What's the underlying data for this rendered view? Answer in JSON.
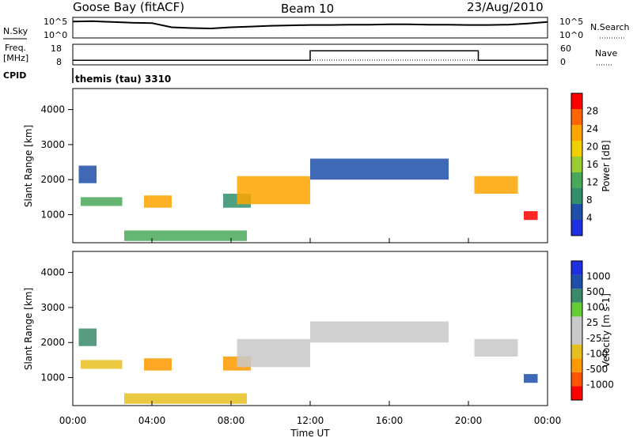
{
  "header": {
    "station": "Goose Bay (fitACF)",
    "beam": "Beam 10",
    "date": "23/Aug/2010"
  },
  "strip_labels": {
    "nsky": "N.Sky",
    "nsearch": "N.Search",
    "freq": "Freq.",
    "mhz": "[MHz]",
    "nave": "Nave",
    "cpid": "CPID",
    "log_top": "10^5",
    "log_bottom": "10^0",
    "cpid_value": "themis (tau) 3310"
  },
  "colors": {
    "power_scale": [
      "#1f2fe0",
      "#1f4fa8",
      "#2f8f6a",
      "#4aa85a",
      "#9acd32",
      "#f0d000",
      "#ffa500",
      "#ff6600",
      "#ff0000"
    ],
    "velocity_scale": [
      "#1f2fe0",
      "#1f4fa8",
      "#3a8a6a",
      "#66cc33",
      "#c8c8c8",
      "#c8c8c8",
      "#e6c020",
      "#ff9900",
      "#ff5500",
      "#ff0000"
    ]
  },
  "chart_data": [
    {
      "type": "line",
      "name": "nsky-nsearch-strip",
      "x": [
        0,
        1,
        2,
        3,
        4,
        5,
        6,
        7,
        8,
        9,
        10,
        11,
        12,
        13,
        14,
        15,
        16,
        17,
        18,
        19,
        20,
        21,
        22,
        23,
        24
      ],
      "series": [
        {
          "values": [
            4.1,
            4.2,
            4.0,
            3.8,
            3.7,
            2.6,
            2.4,
            2.3,
            2.6,
            2.8,
            3.0,
            3.1,
            3.2,
            3.2,
            3.3,
            3.3,
            3.4,
            3.4,
            3.3,
            3.3,
            3.2,
            3.2,
            3.3,
            3.6,
            4.0
          ]
        }
      ],
      "ylim": [
        0,
        5
      ]
    },
    {
      "type": "line",
      "name": "freq-nave-strip",
      "x": [
        0,
        12,
        12,
        20.5,
        20.5,
        24
      ],
      "series": [
        {
          "values": [
            10,
            10,
            15,
            15,
            10,
            10
          ]
        }
      ],
      "ylim": [
        8,
        18
      ]
    },
    {
      "type": "heatmap",
      "name": "power",
      "xlabel": "",
      "ylabel": "Slant Range [km]",
      "xlim": [
        0,
        24
      ],
      "ylim": [
        200,
        4600
      ],
      "yticks": [
        1000,
        2000,
        3000,
        4000
      ],
      "colorbar_label": "Power [dB]",
      "colorbar_ticks": [
        "4",
        "8",
        "12",
        "16",
        "20",
        "24",
        "28"
      ],
      "regions": [
        {
          "t0": 0.3,
          "t1": 1.2,
          "r0": 1900,
          "r1": 2400,
          "v": 1
        },
        {
          "t0": 0.4,
          "t1": 2.5,
          "r0": 1250,
          "r1": 1500,
          "v": 3
        },
        {
          "t0": 3.6,
          "t1": 5.0,
          "r0": 1200,
          "r1": 1550,
          "v": 6
        },
        {
          "t0": 2.6,
          "t1": 8.8,
          "r0": 250,
          "r1": 550,
          "v": 3
        },
        {
          "t0": 7.6,
          "t1": 9.0,
          "r0": 1200,
          "r1": 1600,
          "v": 2
        },
        {
          "t0": 8.3,
          "t1": 12.0,
          "r0": 1300,
          "r1": 2100,
          "v": 6
        },
        {
          "t0": 12.0,
          "t1": 19.0,
          "r0": 2000,
          "r1": 2600,
          "v": 1
        },
        {
          "t0": 20.3,
          "t1": 22.5,
          "r0": 1600,
          "r1": 2100,
          "v": 6
        },
        {
          "t0": 22.8,
          "t1": 23.5,
          "r0": 850,
          "r1": 1100,
          "v": 8
        }
      ]
    },
    {
      "type": "heatmap",
      "name": "velocity",
      "xlabel": "Time UT",
      "ylabel": "Slant Range [km]",
      "xlim": [
        0,
        24
      ],
      "ylim": [
        200,
        4600
      ],
      "yticks": [
        1000,
        2000,
        3000,
        4000
      ],
      "xticks": [
        "00:00",
        "04:00",
        "08:00",
        "12:00",
        "16:00",
        "20:00",
        "00:00"
      ],
      "colorbar_label": "Velocity [m s-1]",
      "colorbar_ticks": [
        "1000",
        "500",
        "100",
        "25",
        "-25",
        "-100",
        "-500",
        "-1000"
      ],
      "regions": [
        {
          "t0": 0.3,
          "t1": 1.2,
          "r0": 1900,
          "r1": 2400,
          "v": 2
        },
        {
          "t0": 0.4,
          "t1": 2.5,
          "r0": 1250,
          "r1": 1500,
          "v": 6
        },
        {
          "t0": 3.6,
          "t1": 5.0,
          "r0": 1200,
          "r1": 1550,
          "v": 7
        },
        {
          "t0": 2.6,
          "t1": 8.8,
          "r0": 250,
          "r1": 550,
          "v": 6
        },
        {
          "t0": 7.6,
          "t1": 9.0,
          "r0": 1200,
          "r1": 1600,
          "v": 7
        },
        {
          "t0": 8.3,
          "t1": 12.0,
          "r0": 1300,
          "r1": 2100,
          "v": 4
        },
        {
          "t0": 12.0,
          "t1": 19.0,
          "r0": 2000,
          "r1": 2600,
          "v": 4
        },
        {
          "t0": 20.3,
          "t1": 22.5,
          "r0": 1600,
          "r1": 2100,
          "v": 4
        },
        {
          "t0": 22.8,
          "t1": 23.5,
          "r0": 850,
          "r1": 1100,
          "v": 1
        }
      ]
    }
  ]
}
